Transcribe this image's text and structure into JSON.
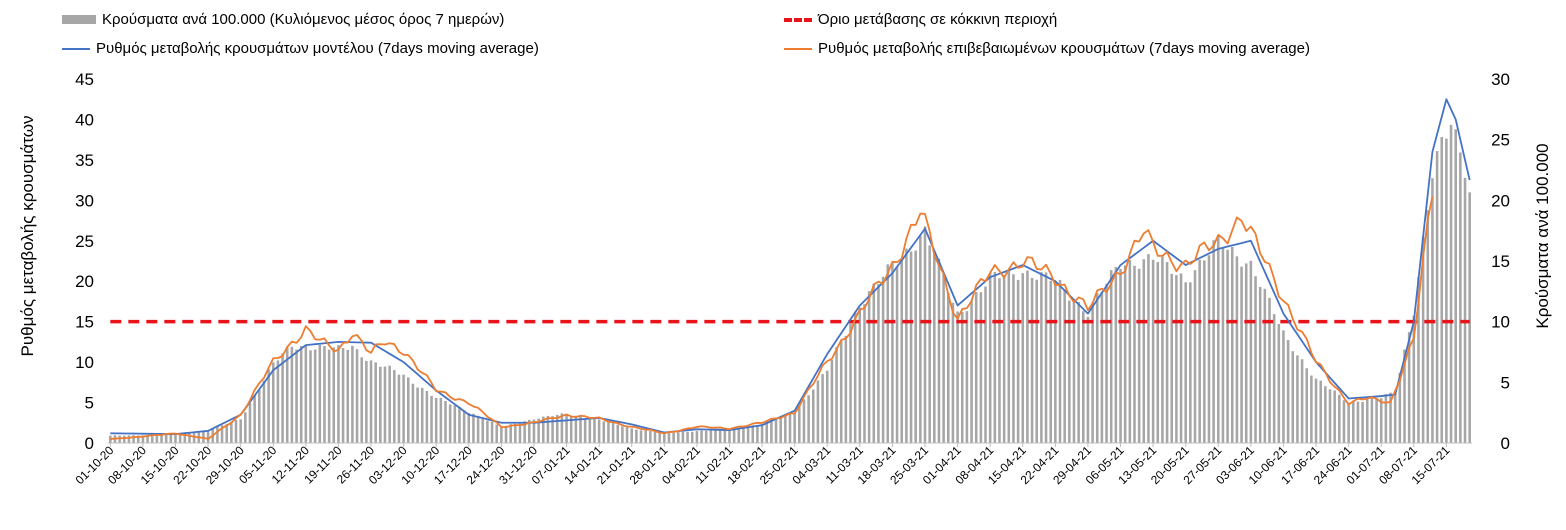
{
  "chart_data": {
    "type": "bar",
    "legend_placement": "top",
    "legend": {
      "bars": "Κρούσματα ανά 100.000 (Κυλιόμενος μέσος όρος 7 ημερών)",
      "threshold": "Όριο μετάβασης σε κόκκινη περιοχή",
      "model": "Ρυθμός μεταβολής κρουσμάτων μοντέλου (7days moving average)",
      "confirmed": "Ρυθμός μεταβολής επιβεβαιωμένων κρουσμάτων (7days moving average)"
    },
    "ylabel_left": "Ρυθμός μεταβολής κρουσμάτων",
    "ylabel_right": "Κρούσματα ανά 100.000",
    "y_left_lim": [
      0,
      45
    ],
    "y_right_lim": [
      0,
      30
    ],
    "y_left_ticks": [
      "0",
      "5",
      "10",
      "15",
      "20",
      "25",
      "30",
      "35",
      "40",
      "45"
    ],
    "y_right_ticks": [
      "0",
      "5",
      "10",
      "15",
      "20",
      "25",
      "30"
    ],
    "x_start": "2020-10-01",
    "x_end": "2021-07-20",
    "x_ticks": [
      "01-10-20",
      "08-10-20",
      "15-10-20",
      "22-10-20",
      "29-10-20",
      "05-11-20",
      "12-11-20",
      "19-11-20",
      "26-11-20",
      "03-12-20",
      "10-12-20",
      "17-12-20",
      "24-12-20",
      "31-12-20",
      "07-01-21",
      "14-01-21",
      "21-01-21",
      "28-01-21",
      "04-02-21",
      "11-02-21",
      "18-02-21",
      "25-02-21",
      "04-03-21",
      "11-03-21",
      "18-03-21",
      "25-03-21",
      "01-04-21",
      "08-04-21",
      "15-04-21",
      "22-04-21",
      "29-04-21",
      "06-05-21",
      "13-05-21",
      "20-05-21",
      "27-05-21",
      "03-06-21",
      "10-06-21",
      "17-06-21",
      "24-06-21",
      "01-07-21",
      "08-07-21",
      "15-07-21"
    ],
    "threshold_value": 15,
    "colors": {
      "bars": "#a6a6a6",
      "threshold": "#e8141a",
      "model": "#4472c4",
      "confirmed": "#ed7d31"
    },
    "cases_per_100k_keypoints": [
      [
        "2020-10-01",
        0.6
      ],
      [
        "2020-10-15",
        0.7
      ],
      [
        "2020-10-22",
        1.0
      ],
      [
        "2020-10-29",
        2.0
      ],
      [
        "2020-11-05",
        6.5
      ],
      [
        "2020-11-09",
        8.0
      ],
      [
        "2020-11-12",
        8.0
      ],
      [
        "2020-11-19",
        7.7
      ],
      [
        "2020-11-22",
        8.0
      ],
      [
        "2020-11-26",
        6.7
      ],
      [
        "2020-12-03",
        5.6
      ],
      [
        "2020-12-10",
        3.7
      ],
      [
        "2020-12-17",
        2.6
      ],
      [
        "2020-12-24",
        1.3
      ],
      [
        "2020-12-31",
        2.0
      ],
      [
        "2021-01-07",
        2.4
      ],
      [
        "2021-01-14",
        1.9
      ],
      [
        "2021-01-21",
        1.2
      ],
      [
        "2021-01-28",
        0.8
      ],
      [
        "2021-02-04",
        1.0
      ],
      [
        "2021-02-11",
        1.1
      ],
      [
        "2021-02-18",
        1.6
      ],
      [
        "2021-02-25",
        2.6
      ],
      [
        "2021-03-04",
        6.0
      ],
      [
        "2021-03-11",
        11.5
      ],
      [
        "2021-03-18",
        14.5
      ],
      [
        "2021-03-25",
        17.5
      ],
      [
        "2021-04-01",
        10.6
      ],
      [
        "2021-04-08",
        13.5
      ],
      [
        "2021-04-15",
        14.2
      ],
      [
        "2021-04-22",
        13.3
      ],
      [
        "2021-04-29",
        10.8
      ],
      [
        "2021-05-06",
        14.8
      ],
      [
        "2021-05-13",
        15.2
      ],
      [
        "2021-05-20",
        13.5
      ],
      [
        "2021-05-27",
        16.5
      ],
      [
        "2021-06-03",
        14.8
      ],
      [
        "2021-06-10",
        9.0
      ],
      [
        "2021-06-17",
        5.2
      ],
      [
        "2021-06-24",
        3.4
      ],
      [
        "2021-07-01",
        3.7
      ],
      [
        "2021-07-04",
        4.2
      ],
      [
        "2021-07-08",
        11.0
      ],
      [
        "2021-07-12",
        22.0
      ],
      [
        "2021-07-16",
        26.6
      ],
      [
        "2021-07-19",
        23.0
      ],
      [
        "2021-07-20",
        21.0
      ]
    ],
    "model_keypoints": [
      [
        "2020-10-01",
        1.2
      ],
      [
        "2020-10-15",
        1.1
      ],
      [
        "2020-10-22",
        1.5
      ],
      [
        "2020-10-29",
        3.5
      ],
      [
        "2020-11-05",
        9.0
      ],
      [
        "2020-11-12",
        12.1
      ],
      [
        "2020-11-19",
        12.5
      ],
      [
        "2020-11-26",
        12.4
      ],
      [
        "2020-12-03",
        10.0
      ],
      [
        "2020-12-10",
        6.5
      ],
      [
        "2020-12-17",
        3.5
      ],
      [
        "2020-12-24",
        2.5
      ],
      [
        "2020-12-31",
        2.5
      ],
      [
        "2021-01-07",
        2.8
      ],
      [
        "2021-01-14",
        3.1
      ],
      [
        "2021-01-21",
        2.3
      ],
      [
        "2021-01-28",
        1.3
      ],
      [
        "2021-02-04",
        1.7
      ],
      [
        "2021-02-11",
        1.6
      ],
      [
        "2021-02-18",
        2.2
      ],
      [
        "2021-02-25",
        4.0
      ],
      [
        "2021-03-04",
        11.0
      ],
      [
        "2021-03-11",
        17.0
      ],
      [
        "2021-03-18",
        21.0
      ],
      [
        "2021-03-25",
        26.5
      ],
      [
        "2021-04-01",
        17.0
      ],
      [
        "2021-04-08",
        20.5
      ],
      [
        "2021-04-15",
        22.0
      ],
      [
        "2021-04-22",
        20.0
      ],
      [
        "2021-04-29",
        16.0
      ],
      [
        "2021-05-06",
        22.0
      ],
      [
        "2021-05-13",
        25.0
      ],
      [
        "2021-05-20",
        22.0
      ],
      [
        "2021-05-27",
        24.0
      ],
      [
        "2021-06-03",
        25.0
      ],
      [
        "2021-06-10",
        16.0
      ],
      [
        "2021-06-17",
        10.0
      ],
      [
        "2021-06-24",
        5.5
      ],
      [
        "2021-07-01",
        5.8
      ],
      [
        "2021-07-04",
        6.0
      ],
      [
        "2021-07-08",
        15.0
      ],
      [
        "2021-07-12",
        36.0
      ],
      [
        "2021-07-15",
        42.5
      ],
      [
        "2021-07-17",
        40.0
      ],
      [
        "2021-07-20",
        32.5
      ]
    ],
    "confirmed_keypoints": [
      [
        "2020-10-01",
        0.5
      ],
      [
        "2020-10-08",
        0.8
      ],
      [
        "2020-10-15",
        1.2
      ],
      [
        "2020-10-22",
        0.5
      ],
      [
        "2020-10-29",
        3.5
      ],
      [
        "2020-11-05",
        10.0
      ],
      [
        "2020-11-09",
        12.5
      ],
      [
        "2020-11-12",
        14.0
      ],
      [
        "2020-11-15",
        12.5
      ],
      [
        "2020-11-19",
        11.5
      ],
      [
        "2020-11-22",
        13.8
      ],
      [
        "2020-11-26",
        11.0
      ],
      [
        "2020-11-29",
        12.5
      ],
      [
        "2020-12-03",
        11.5
      ],
      [
        "2020-12-10",
        6.5
      ],
      [
        "2020-12-17",
        5.0
      ],
      [
        "2020-12-24",
        2.0
      ],
      [
        "2020-12-31",
        2.5
      ],
      [
        "2021-01-07",
        3.5
      ],
      [
        "2021-01-14",
        3.0
      ],
      [
        "2021-01-21",
        2.0
      ],
      [
        "2021-01-28",
        1.2
      ],
      [
        "2021-02-04",
        2.0
      ],
      [
        "2021-02-11",
        1.8
      ],
      [
        "2021-02-18",
        2.5
      ],
      [
        "2021-02-25",
        3.8
      ],
      [
        "2021-03-04",
        10.0
      ],
      [
        "2021-03-11",
        16.0
      ],
      [
        "2021-03-18",
        22.0
      ],
      [
        "2021-03-24",
        28.5
      ],
      [
        "2021-04-01",
        15.5
      ],
      [
        "2021-04-08",
        21.0
      ],
      [
        "2021-04-15",
        22.5
      ],
      [
        "2021-04-22",
        20.5
      ],
      [
        "2021-04-29",
        16.5
      ],
      [
        "2021-05-06",
        21.5
      ],
      [
        "2021-05-11",
        26.0
      ],
      [
        "2021-05-13",
        24.0
      ],
      [
        "2021-05-20",
        22.0
      ],
      [
        "2021-05-27",
        25.0
      ],
      [
        "2021-06-01",
        28.0
      ],
      [
        "2021-06-10",
        18.0
      ],
      [
        "2021-06-17",
        10.0
      ],
      [
        "2021-06-24",
        5.0
      ],
      [
        "2021-06-28",
        5.5
      ],
      [
        "2021-07-03",
        5.0
      ],
      [
        "2021-07-08",
        13.0
      ],
      [
        "2021-07-12",
        31.0
      ]
    ]
  }
}
